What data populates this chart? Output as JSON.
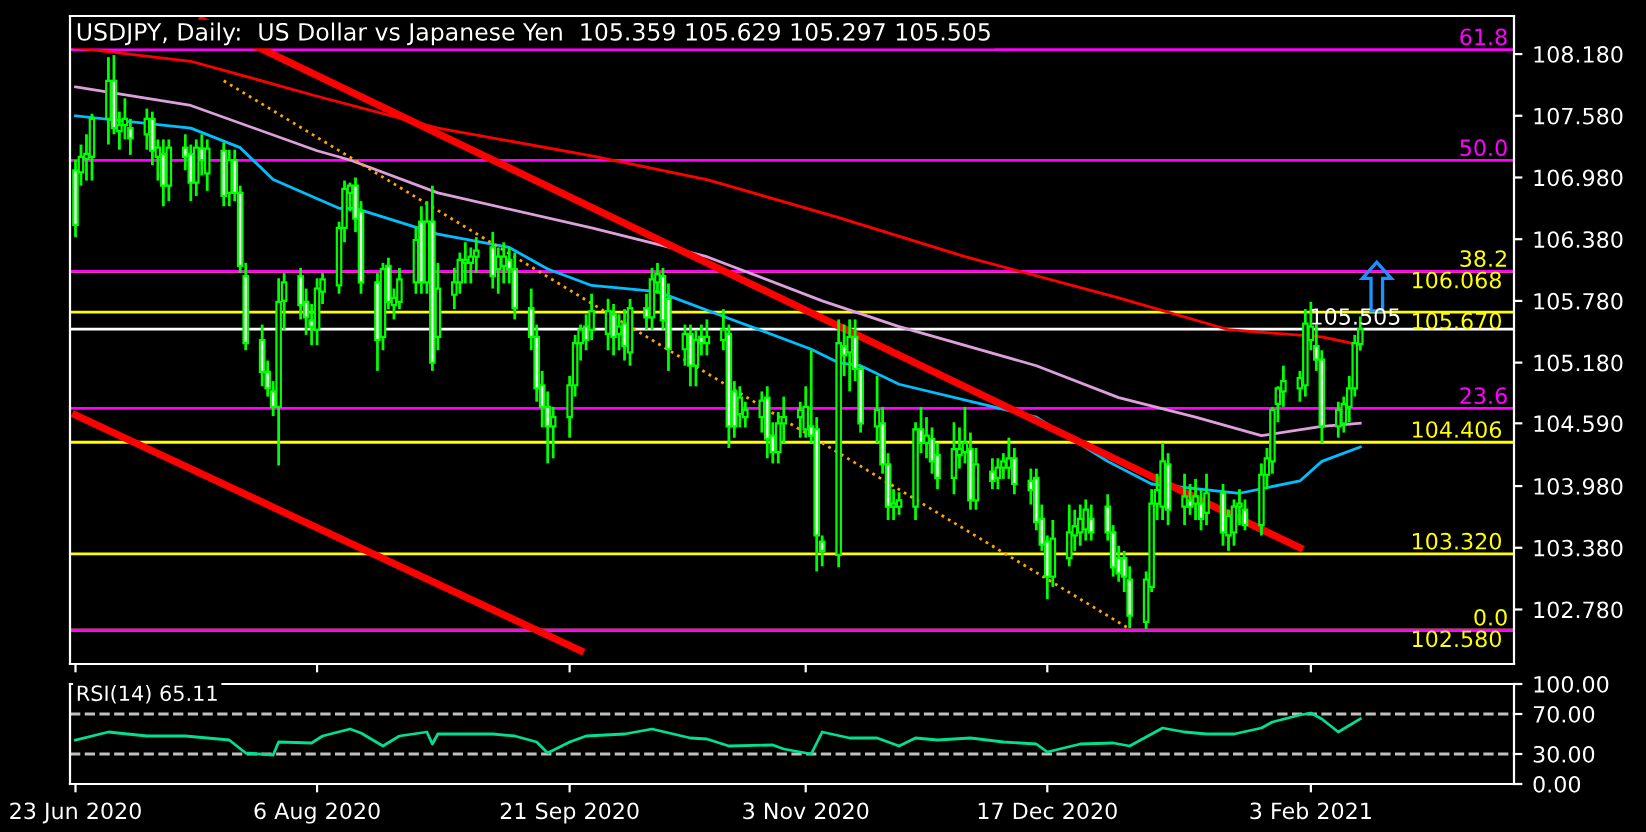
{
  "chart_data": [
    {
      "type": "candlestick",
      "title": "USDJPY, Daily:  US Dollar vs Japanese Yen  105.359 105.629 105.297 105.505",
      "color": "#00ff00",
      "x": [
        "2020-06-23",
        "2020-06-24",
        "2020-06-25",
        "2020-06-26",
        "2020-06-29",
        "2020-06-30",
        "2020-07-01",
        "2020-07-02",
        "2020-07-03",
        "2020-07-06",
        "2020-07-07",
        "2020-07-08",
        "2020-07-09",
        "2020-07-10",
        "2020-07-13",
        "2020-07-14",
        "2020-07-15",
        "2020-07-16",
        "2020-07-17",
        "2020-07-20",
        "2020-07-21",
        "2020-07-22",
        "2020-07-23",
        "2020-07-24",
        "2020-07-27",
        "2020-07-28",
        "2020-07-29",
        "2020-07-30",
        "2020-07-31",
        "2020-08-03",
        "2020-08-04",
        "2020-08-05",
        "2020-08-06",
        "2020-08-07",
        "2020-08-10",
        "2020-08-11",
        "2020-08-12",
        "2020-08-13",
        "2020-08-14",
        "2020-08-17",
        "2020-08-18",
        "2020-08-19",
        "2020-08-20",
        "2020-08-21",
        "2020-08-24",
        "2020-08-25",
        "2020-08-26",
        "2020-08-27",
        "2020-08-28",
        "2020-08-31",
        "2020-09-01",
        "2020-09-02",
        "2020-09-03",
        "2020-09-04",
        "2020-09-07",
        "2020-09-08",
        "2020-09-09",
        "2020-09-10",
        "2020-09-11",
        "2020-09-14",
        "2020-09-15",
        "2020-09-16",
        "2020-09-17",
        "2020-09-18",
        "2020-09-21",
        "2020-09-22",
        "2020-09-23",
        "2020-09-24",
        "2020-09-25",
        "2020-09-28",
        "2020-09-29",
        "2020-09-30",
        "2020-10-01",
        "2020-10-02",
        "2020-10-05",
        "2020-10-06",
        "2020-10-07",
        "2020-10-08",
        "2020-10-09",
        "2020-10-12",
        "2020-10-13",
        "2020-10-14",
        "2020-10-15",
        "2020-10-16",
        "2020-10-19",
        "2020-10-20",
        "2020-10-21",
        "2020-10-22",
        "2020-10-23",
        "2020-10-26",
        "2020-10-27",
        "2020-10-28",
        "2020-10-29",
        "2020-10-30",
        "2020-11-02",
        "2020-11-03",
        "2020-11-04",
        "2020-11-05",
        "2020-11-06",
        "2020-11-09",
        "2020-11-10",
        "2020-11-11",
        "2020-11-12",
        "2020-11-13",
        "2020-11-16",
        "2020-11-17",
        "2020-11-18",
        "2020-11-19",
        "2020-11-20",
        "2020-11-23",
        "2020-11-24",
        "2020-11-25",
        "2020-11-26",
        "2020-11-27",
        "2020-11-30",
        "2020-12-01",
        "2020-12-02",
        "2020-12-03",
        "2020-12-04",
        "2020-12-07",
        "2020-12-08",
        "2020-12-09",
        "2020-12-10",
        "2020-12-11",
        "2020-12-14",
        "2020-12-15",
        "2020-12-16",
        "2020-12-17",
        "2020-12-18",
        "2020-12-21",
        "2020-12-22",
        "2020-12-23",
        "2020-12-24",
        "2020-12-25",
        "2020-12-28",
        "2020-12-29",
        "2020-12-30",
        "2020-12-31",
        "2021-01-01",
        "2021-01-04",
        "2021-01-05",
        "2021-01-06",
        "2021-01-07",
        "2021-01-08",
        "2021-01-11",
        "2021-01-12",
        "2021-01-13",
        "2021-01-14",
        "2021-01-15",
        "2021-01-18",
        "2021-01-19",
        "2021-01-20",
        "2021-01-21",
        "2021-01-22",
        "2021-01-25",
        "2021-01-26",
        "2021-01-27",
        "2021-01-28",
        "2021-01-29",
        "2021-02-01",
        "2021-02-02",
        "2021-02-03",
        "2021-02-04",
        "2021-02-05",
        "2021-02-08",
        "2021-02-09",
        "2021-02-10",
        "2021-02-11",
        "2021-02-12"
      ],
      "ohlc": [
        [
          107.05,
          107.15,
          106.4,
          106.52
        ],
        [
          107.03,
          107.3,
          106.9,
          107.18
        ],
        [
          107.16,
          107.4,
          106.95,
          107.21
        ],
        [
          107.18,
          107.6,
          106.95,
          107.55
        ],
        [
          107.55,
          108.15,
          107.3,
          107.92
        ],
        [
          107.92,
          108.17,
          107.4,
          107.46
        ],
        [
          107.43,
          107.62,
          107.25,
          107.49
        ],
        [
          107.49,
          107.75,
          107.35,
          107.55
        ],
        [
          107.46,
          107.55,
          107.2,
          107.36
        ],
        [
          107.4,
          107.65,
          107.25,
          107.55
        ],
        [
          107.55,
          107.62,
          107.1,
          107.24
        ],
        [
          107.18,
          107.35,
          106.95,
          107.27
        ],
        [
          107.21,
          107.35,
          106.7,
          106.9
        ],
        [
          106.9,
          107.35,
          106.75,
          107.27
        ],
        [
          107.27,
          107.4,
          107.05,
          107.18
        ],
        [
          107.21,
          107.3,
          106.75,
          106.93
        ],
        [
          106.93,
          107.35,
          106.8,
          107.27
        ],
        [
          107.26,
          107.4,
          107.0,
          107.15
        ],
        [
          107.02,
          107.35,
          106.85,
          107.26
        ],
        [
          107.24,
          107.32,
          106.7,
          106.8
        ],
        [
          106.83,
          107.25,
          106.7,
          107.15
        ],
        [
          107.15,
          107.25,
          106.75,
          106.83
        ],
        [
          106.83,
          106.9,
          106.05,
          106.12
        ],
        [
          106.02,
          106.15,
          105.3,
          105.37
        ],
        [
          105.4,
          105.55,
          104.95,
          105.09
        ],
        [
          105.09,
          105.2,
          104.85,
          104.93
        ],
        [
          104.9,
          105.0,
          104.66,
          104.75
        ],
        [
          104.75,
          106.0,
          104.18,
          105.77
        ],
        [
          105.78,
          106.05,
          105.5,
          105.96
        ],
        [
          106.02,
          106.1,
          105.6,
          105.74
        ],
        [
          105.77,
          105.9,
          105.45,
          105.62
        ],
        [
          105.59,
          105.75,
          105.35,
          105.53
        ],
        [
          105.5,
          106.0,
          105.35,
          105.9
        ],
        [
          105.87,
          106.05,
          105.75,
          105.99
        ],
        [
          105.93,
          106.55,
          105.85,
          106.49
        ],
        [
          106.49,
          106.95,
          106.35,
          106.87
        ],
        [
          106.83,
          106.93,
          106.65,
          106.9
        ],
        [
          106.9,
          106.98,
          106.45,
          106.58
        ],
        [
          106.65,
          106.75,
          105.85,
          105.96
        ],
        [
          105.96,
          106.05,
          105.1,
          105.4
        ],
        [
          105.43,
          106.15,
          105.3,
          106.09
        ],
        [
          106.12,
          106.2,
          105.7,
          105.77
        ],
        [
          105.74,
          105.9,
          105.6,
          105.81
        ],
        [
          105.77,
          106.1,
          105.7,
          105.99
        ],
        [
          105.96,
          106.5,
          105.85,
          106.37
        ],
        [
          106.55,
          106.7,
          105.85,
          105.96
        ],
        [
          105.96,
          106.75,
          105.85,
          106.55
        ],
        [
          106.55,
          106.9,
          105.1,
          105.18
        ],
        [
          105.43,
          106.15,
          105.3,
          105.9
        ],
        [
          105.84,
          106.1,
          105.7,
          105.96
        ],
        [
          105.96,
          106.25,
          105.85,
          106.18
        ],
        [
          106.15,
          106.35,
          105.95,
          106.18
        ],
        [
          106.15,
          106.3,
          105.95,
          106.21
        ],
        [
          106.21,
          106.4,
          106.05,
          106.27
        ],
        [
          106.3,
          106.45,
          105.9,
          106.02
        ],
        [
          106.09,
          106.3,
          105.85,
          106.21
        ],
        [
          106.12,
          106.35,
          105.95,
          106.21
        ],
        [
          106.18,
          106.3,
          105.95,
          106.09
        ],
        [
          106.09,
          106.25,
          105.6,
          105.71
        ],
        [
          105.71,
          105.9,
          105.3,
          105.43
        ],
        [
          105.43,
          105.55,
          104.8,
          104.93
        ],
        [
          104.96,
          105.1,
          104.55,
          104.75
        ],
        [
          104.75,
          104.9,
          104.2,
          104.56
        ],
        [
          104.56,
          104.75,
          104.25,
          104.65
        ],
        [
          104.65,
          105.05,
          104.45,
          104.96
        ],
        [
          104.96,
          105.45,
          104.85,
          105.37
        ],
        [
          105.37,
          105.55,
          105.2,
          105.5
        ],
        [
          105.53,
          105.65,
          105.3,
          105.4
        ],
        [
          105.5,
          105.85,
          105.4,
          105.68
        ],
        [
          105.46,
          105.8,
          105.3,
          105.68
        ],
        [
          105.65,
          105.75,
          105.25,
          105.43
        ],
        [
          105.46,
          105.65,
          105.3,
          105.53
        ],
        [
          105.56,
          105.7,
          105.2,
          105.34
        ],
        [
          105.28,
          105.8,
          105.15,
          105.71
        ],
        [
          105.71,
          105.85,
          105.5,
          105.62
        ],
        [
          105.62,
          106.1,
          105.5,
          105.99
        ],
        [
          105.96,
          106.15,
          105.85,
          106.04
        ],
        [
          106.02,
          106.1,
          105.5,
          105.59
        ],
        [
          105.8,
          105.95,
          105.1,
          105.31
        ],
        [
          105.31,
          105.55,
          105.15,
          105.46
        ],
        [
          105.46,
          105.55,
          104.95,
          105.15
        ],
        [
          105.15,
          105.5,
          104.95,
          105.4
        ],
        [
          105.43,
          105.55,
          105.25,
          105.37
        ],
        [
          105.37,
          105.6,
          105.25,
          105.43
        ],
        [
          105.4,
          105.7,
          105.3,
          105.5
        ],
        [
          105.46,
          105.55,
          104.35,
          104.56
        ],
        [
          104.9,
          105.0,
          104.45,
          104.56
        ],
        [
          104.68,
          104.95,
          104.55,
          104.84
        ],
        [
          104.65,
          104.8,
          104.55,
          104.72
        ],
        [
          104.65,
          104.9,
          104.5,
          104.81
        ],
        [
          104.84,
          104.95,
          104.25,
          104.44
        ],
        [
          104.47,
          104.6,
          104.2,
          104.31
        ],
        [
          104.31,
          104.7,
          104.2,
          104.59
        ],
        [
          104.59,
          104.85,
          104.4,
          104.65
        ],
        [
          104.65,
          104.8,
          104.45,
          104.72
        ],
        [
          104.53,
          104.95,
          104.45,
          104.75
        ],
        [
          104.56,
          105.3,
          104.4,
          104.47
        ],
        [
          104.53,
          104.65,
          103.15,
          103.5
        ],
        [
          103.44,
          103.5,
          103.2,
          103.35
        ],
        [
          103.31,
          105.6,
          103.19,
          105.37
        ],
        [
          105.34,
          105.55,
          105.05,
          105.25
        ],
        [
          105.28,
          105.6,
          104.9,
          105.43
        ],
        [
          105.43,
          105.6,
          105.0,
          105.12
        ],
        [
          105.12,
          105.15,
          104.5,
          104.59
        ],
        [
          104.56,
          105.05,
          104.4,
          104.72
        ],
        [
          104.59,
          104.75,
          104.1,
          104.19
        ],
        [
          104.19,
          104.3,
          103.65,
          103.78
        ],
        [
          103.78,
          103.95,
          103.65,
          103.81
        ],
        [
          103.78,
          103.92,
          103.7,
          103.84
        ],
        [
          103.78,
          104.6,
          103.65,
          104.53
        ],
        [
          104.53,
          104.75,
          104.3,
          104.4
        ],
        [
          104.4,
          104.65,
          104.25,
          104.47
        ],
        [
          104.44,
          104.55,
          104.1,
          104.22
        ],
        [
          104.28,
          104.4,
          103.95,
          104.06
        ],
        [
          104.06,
          104.6,
          103.9,
          104.34
        ],
        [
          104.28,
          104.55,
          104.15,
          104.34
        ],
        [
          104.31,
          104.75,
          104.2,
          104.4
        ],
        [
          104.34,
          104.5,
          103.75,
          103.84
        ],
        [
          103.84,
          104.35,
          103.75,
          104.19
        ],
        [
          104.12,
          104.25,
          103.95,
          104.03
        ],
        [
          104.06,
          104.25,
          103.95,
          104.16
        ],
        [
          104.16,
          104.3,
          104.05,
          104.22
        ],
        [
          104.16,
          104.45,
          104.05,
          104.25
        ],
        [
          104.25,
          104.35,
          103.9,
          104.0
        ],
        [
          104.03,
          104.15,
          103.8,
          103.94
        ],
        [
          104.06,
          104.15,
          103.55,
          103.63
        ],
        [
          103.66,
          103.8,
          103.35,
          103.41
        ],
        [
          103.44,
          103.5,
          102.88,
          103.1
        ],
        [
          103.1,
          103.65,
          103.0,
          103.47
        ],
        [
          103.28,
          103.8,
          103.2,
          103.53
        ],
        [
          103.5,
          103.75,
          103.35,
          103.59
        ],
        [
          103.53,
          103.8,
          103.4,
          103.66
        ],
        [
          103.56,
          103.85,
          103.45,
          103.75
        ],
        [
          103.66,
          103.8,
          103.45,
          103.53
        ],
        [
          103.78,
          103.9,
          103.45,
          103.53
        ],
        [
          103.53,
          103.6,
          103.1,
          103.19
        ],
        [
          103.28,
          103.4,
          103.05,
          103.13
        ],
        [
          103.28,
          103.35,
          102.95,
          103.1
        ],
        [
          103.07,
          103.2,
          102.6,
          102.72
        ],
        [
          102.66,
          103.15,
          102.59,
          103.07
        ],
        [
          103.0,
          103.95,
          102.95,
          103.81
        ],
        [
          103.81,
          104.1,
          103.65,
          103.94
        ],
        [
          103.78,
          104.4,
          103.65,
          104.22
        ],
        [
          104.19,
          104.3,
          103.6,
          103.75
        ],
        [
          103.78,
          104.1,
          103.6,
          103.88
        ],
        [
          103.84,
          104.0,
          103.7,
          103.78
        ],
        [
          103.81,
          104.05,
          103.65,
          103.88
        ],
        [
          103.81,
          103.95,
          103.55,
          103.66
        ],
        [
          103.72,
          104.1,
          103.6,
          103.91
        ],
        [
          103.91,
          104.0,
          103.4,
          103.53
        ],
        [
          103.5,
          103.75,
          103.35,
          103.69
        ],
        [
          103.53,
          103.85,
          103.4,
          103.78
        ],
        [
          103.78,
          103.95,
          103.6,
          103.81
        ],
        [
          103.75,
          103.85,
          103.55,
          103.6
        ],
        [
          103.6,
          104.2,
          103.5,
          104.09
        ],
        [
          104.09,
          104.35,
          103.95,
          104.25
        ],
        [
          104.22,
          104.75,
          104.1,
          104.72
        ],
        [
          104.78,
          104.95,
          104.6,
          104.93
        ],
        [
          104.9,
          105.15,
          104.75,
          105.0
        ],
        [
          104.93,
          105.1,
          104.8,
          105.03
        ],
        [
          104.96,
          105.7,
          104.85,
          105.56
        ],
        [
          105.4,
          105.77,
          105.3,
          105.53
        ],
        [
          105.34,
          105.55,
          105.1,
          105.21
        ],
        [
          105.21,
          105.3,
          104.4,
          104.56
        ],
        [
          104.56,
          104.8,
          104.45,
          104.72
        ],
        [
          104.59,
          104.85,
          104.5,
          104.78
        ],
        [
          104.75,
          105.05,
          104.6,
          104.93
        ],
        [
          104.93,
          105.45,
          104.85,
          105.37
        ],
        [
          105.359,
          105.629,
          105.297,
          105.505
        ]
      ],
      "series": [
        {
          "type": "line",
          "color": "#ff0000",
          "x": [
            "2020-06-23",
            "2020-07-14",
            "2020-08-06",
            "2020-08-28",
            "2020-09-25",
            "2020-10-16",
            "2020-11-09",
            "2020-12-02",
            "2020-12-30",
            "2021-01-19",
            "2021-02-05",
            "2021-02-12"
          ],
          "values": [
            108.24,
            108.11,
            107.77,
            107.46,
            107.19,
            106.96,
            106.59,
            106.21,
            105.81,
            105.5,
            105.43,
            105.35
          ]
        },
        {
          "type": "line",
          "color": "#dda0dd",
          "x": [
            "2020-06-23",
            "2020-07-14",
            "2020-08-06",
            "2020-08-12",
            "2020-08-28",
            "2020-09-25",
            "2020-10-16",
            "2020-11-06",
            "2020-11-20",
            "2020-12-15",
            "2020-12-30",
            "2021-01-13",
            "2021-01-25",
            "2021-02-05",
            "2021-02-12"
          ],
          "values": [
            107.86,
            107.68,
            107.24,
            107.15,
            106.83,
            106.49,
            106.21,
            105.78,
            105.53,
            105.15,
            104.84,
            104.65,
            104.47,
            104.56,
            104.59
          ]
        },
        {
          "type": "line",
          "color": "#00bfff",
          "x": [
            "2020-06-23",
            "2020-07-14",
            "2020-07-23",
            "2020-07-29",
            "2020-08-10",
            "2020-08-13",
            "2020-08-28",
            "2020-09-10",
            "2020-09-17",
            "2020-09-25",
            "2020-10-07",
            "2020-10-21",
            "2020-11-04",
            "2020-11-09",
            "2020-11-13",
            "2020-11-20",
            "2020-12-15",
            "2020-12-28",
            "2021-01-05",
            "2021-01-21",
            "2021-02-01",
            "2021-02-05",
            "2021-02-12"
          ],
          "values": [
            107.58,
            107.46,
            107.27,
            106.96,
            106.68,
            106.68,
            106.43,
            106.3,
            106.09,
            105.93,
            105.87,
            105.59,
            105.31,
            105.18,
            105.15,
            104.97,
            104.65,
            104.22,
            104.0,
            103.91,
            104.03,
            104.22,
            104.36
          ]
        },
        {
          "type": "line",
          "color": "#ff0000",
          "x": [
            "2020-07-16",
            "2021-02-01"
          ],
          "values": [
            108.51,
            103.38
          ]
        },
        {
          "type": "line",
          "color": "#ff0000",
          "x": [
            "2020-06-23",
            "2020-09-23"
          ],
          "values": [
            104.67,
            102.38
          ]
        },
        {
          "type": "line",
          "color": "#ffa500",
          "line_style": "dotted",
          "x": [
            "2020-07-20",
            "2021-01-01"
          ],
          "values": [
            107.92,
            102.59
          ]
        }
      ],
      "ref_lines": [
        {
          "axis": "y",
          "value": 106.068,
          "label": "106.068",
          "color": "#ffff00"
        },
        {
          "axis": "y",
          "value": 105.67,
          "label": "105.670",
          "color": "#ffff00"
        },
        {
          "axis": "y",
          "value": 104.406,
          "label": "104.406",
          "color": "#ffff00"
        },
        {
          "axis": "y",
          "value": 103.32,
          "label": "103.320",
          "color": "#ffff00"
        },
        {
          "axis": "y",
          "value": 102.58,
          "label": "102.580",
          "color": "#ffff00"
        },
        {
          "axis": "y",
          "value": 105.505,
          "label": "105.505",
          "color": "#ffffff"
        },
        {
          "axis": "y",
          "value": 108.223,
          "color": "#ff00ff"
        },
        {
          "axis": "y",
          "value": 107.146,
          "color": "#ff00ff"
        },
        {
          "axis": "y",
          "value": 106.068,
          "color": "#ff00ff"
        },
        {
          "axis": "y",
          "value": 104.735,
          "color": "#ff00ff"
        },
        {
          "axis": "y",
          "value": 102.58,
          "color": "#ff00ff"
        }
      ],
      "annotations": [
        {
          "text": "61.8",
          "x": "2021-03-12",
          "y": 108.223
        },
        {
          "text": "50.0",
          "x": "2021-03-12",
          "y": 107.146
        },
        {
          "text": "38.2",
          "x": "2021-03-12",
          "y": 106.068
        },
        {
          "text": "23.6",
          "x": "2021-03-12",
          "y": 104.735
        },
        {
          "text": "0.0",
          "x": "2021-03-12",
          "y": 102.58
        }
      ],
      "ylim": [
        102.25,
        108.55
      ],
      "yticks": [
        {
          "value": 108.18,
          "label": "108.180"
        },
        {
          "value": 107.58,
          "label": "107.580"
        },
        {
          "value": 106.98,
          "label": "106.980"
        },
        {
          "value": 106.38,
          "label": "106.380"
        },
        {
          "value": 105.78,
          "label": "105.780"
        },
        {
          "value": 105.18,
          "label": "105.180"
        },
        {
          "value": 104.59,
          "label": "104.590"
        },
        {
          "value": 103.98,
          "label": "103.980"
        },
        {
          "value": 103.38,
          "label": "103.380"
        },
        {
          "value": 102.78,
          "label": "102.780"
        }
      ],
      "xlim": [
        "2020-06-22",
        "2021-03-12"
      ],
      "xticks": [
        {
          "value": "2020-06-23",
          "label": null
        },
        {
          "value": "2020-08-06",
          "label": null
        },
        {
          "value": "2020-09-21",
          "label": null
        },
        {
          "value": "2020-11-03",
          "label": null
        },
        {
          "value": "2020-12-17",
          "label": null
        },
        {
          "value": "2021-02-03",
          "label": null
        }
      ],
      "tick_labels": "y"
    },
    {
      "type": "line",
      "title": "RSI(14) 65.11",
      "color": "#00e08f",
      "x": [
        "2020-06-23",
        "2020-06-29",
        "2020-07-06",
        "2020-07-13",
        "2020-07-21",
        "2020-07-24",
        "2020-07-29",
        "2020-07-30",
        "2020-08-05",
        "2020-08-07",
        "2020-08-12",
        "2020-08-14",
        "2020-08-18",
        "2020-08-21",
        "2020-08-26",
        "2020-08-27",
        "2020-08-28",
        "2020-09-07",
        "2020-09-11",
        "2020-09-15",
        "2020-09-17",
        "2020-09-21",
        "2020-09-24",
        "2020-10-01",
        "2020-10-06",
        "2020-10-13",
        "2020-10-16",
        "2020-10-20",
        "2020-10-28",
        "2020-10-30",
        "2020-11-04",
        "2020-11-06",
        "2020-11-11",
        "2020-11-16",
        "2020-11-20",
        "2020-11-23",
        "2020-11-27",
        "2020-12-03",
        "2020-12-09",
        "2020-12-15",
        "2020-12-17",
        "2020-12-23",
        "2020-12-29",
        "2021-01-01",
        "2021-01-05",
        "2021-01-07",
        "2021-01-11",
        "2021-01-15",
        "2021-01-20",
        "2021-01-25",
        "2021-01-27",
        "2021-02-01",
        "2021-02-03",
        "2021-02-05",
        "2021-02-08",
        "2021-02-12"
      ],
      "values": [
        44,
        52,
        48,
        48,
        44,
        31,
        29,
        42,
        41,
        48,
        55,
        51,
        38,
        48,
        52,
        40,
        50,
        50,
        48,
        42,
        31,
        42,
        48,
        50,
        55,
        46,
        45,
        38,
        39,
        35,
        30,
        52,
        46,
        46,
        38,
        46,
        44,
        46,
        42,
        40,
        32,
        40,
        41,
        38,
        50,
        56,
        52,
        50,
        50,
        56,
        62,
        69,
        71,
        65,
        52,
        65.11
      ],
      "ref_lines": [
        {
          "axis": "y",
          "value": 70,
          "line_style": "dashed",
          "color": "#c0c0c0"
        },
        {
          "axis": "y",
          "value": 30,
          "line_style": "dashed",
          "color": "#c0c0c0"
        }
      ],
      "ylim": [
        0,
        100
      ],
      "yticks": [
        {
          "value": 100,
          "label": "100.00"
        },
        {
          "value": 70,
          "label": "70.00"
        },
        {
          "value": 30,
          "label": "30.00"
        },
        {
          "value": 0,
          "label": "0.00"
        }
      ],
      "xlim": [
        "2020-06-22",
        "2021-03-12"
      ],
      "xticks": [
        {
          "value": "2020-06-23",
          "label": "23 Jun 2020"
        },
        {
          "value": "2020-08-06",
          "label": "6 Aug 2020"
        },
        {
          "value": "2020-09-21",
          "label": "21 Sep 2020"
        },
        {
          "value": "2020-11-03",
          "label": "3 Nov 2020"
        },
        {
          "value": "2020-12-17",
          "label": "17 Dec 2020"
        },
        {
          "value": "2021-02-03",
          "label": "3 Feb 2021"
        }
      ]
    }
  ]
}
